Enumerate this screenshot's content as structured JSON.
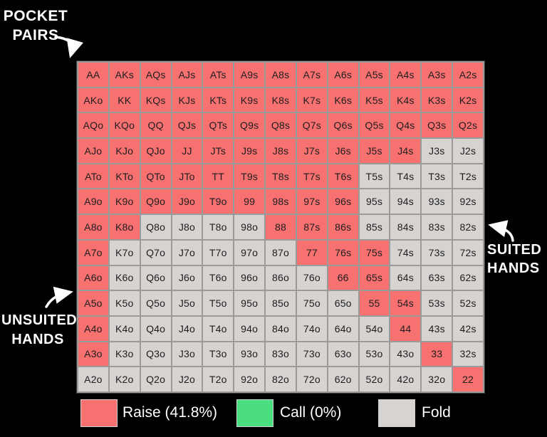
{
  "annotations": {
    "pocket_pairs": {
      "line1": "POCKET",
      "line2": "PAIRS"
    },
    "suited": {
      "line1": "SUITED",
      "line2": "HANDS"
    },
    "unsuited": {
      "line1": "UNSUITED",
      "line2": "HANDS"
    }
  },
  "legend": {
    "items": [
      {
        "action": "raise",
        "label": "Raise (41.8%)",
        "color": "#f87171"
      },
      {
        "action": "call",
        "label": "Call (0%)",
        "color": "#4ade80"
      },
      {
        "action": "fold",
        "label": "Fold",
        "color": "#d6d3d1"
      }
    ]
  },
  "colors": {
    "raise": "#f87171",
    "call": "#4ade80",
    "fold": "#d6d3d1",
    "grid_line": "#9a9a9a",
    "background": "#000000",
    "cell_text": "#1d1d1f",
    "annotation_text": "#ffffff"
  },
  "chart_data": {
    "type": "heatmap",
    "title": "Preflop poker hand range matrix (13x13)",
    "legend_position": "bottom",
    "action_codes": {
      "R": "raise",
      "C": "call",
      "F": "fold"
    },
    "raise_percent": 41.8,
    "call_percent": 0,
    "hands": [
      [
        "AA",
        "AKs",
        "AQs",
        "AJs",
        "ATs",
        "A9s",
        "A8s",
        "A7s",
        "A6s",
        "A5s",
        "A4s",
        "A3s",
        "A2s"
      ],
      [
        "AKo",
        "KK",
        "KQs",
        "KJs",
        "KTs",
        "K9s",
        "K8s",
        "K7s",
        "K6s",
        "K5s",
        "K4s",
        "K3s",
        "K2s"
      ],
      [
        "AQo",
        "KQo",
        "QQ",
        "QJs",
        "QTs",
        "Q9s",
        "Q8s",
        "Q7s",
        "Q6s",
        "Q5s",
        "Q4s",
        "Q3s",
        "Q2s"
      ],
      [
        "AJo",
        "KJo",
        "QJo",
        "JJ",
        "JTs",
        "J9s",
        "J8s",
        "J7s",
        "J6s",
        "J5s",
        "J4s",
        "J3s",
        "J2s"
      ],
      [
        "ATo",
        "KTo",
        "QTo",
        "JTo",
        "TT",
        "T9s",
        "T8s",
        "T7s",
        "T6s",
        "T5s",
        "T4s",
        "T3s",
        "T2s"
      ],
      [
        "A9o",
        "K9o",
        "Q9o",
        "J9o",
        "T9o",
        "99",
        "98s",
        "97s",
        "96s",
        "95s",
        "94s",
        "93s",
        "92s"
      ],
      [
        "A8o",
        "K8o",
        "Q8o",
        "J8o",
        "T8o",
        "98o",
        "88",
        "87s",
        "86s",
        "85s",
        "84s",
        "83s",
        "82s"
      ],
      [
        "A7o",
        "K7o",
        "Q7o",
        "J7o",
        "T7o",
        "97o",
        "87o",
        "77",
        "76s",
        "75s",
        "74s",
        "73s",
        "72s"
      ],
      [
        "A6o",
        "K6o",
        "Q6o",
        "J6o",
        "T6o",
        "96o",
        "86o",
        "76o",
        "66",
        "65s",
        "64s",
        "63s",
        "62s"
      ],
      [
        "A5o",
        "K5o",
        "Q5o",
        "J5o",
        "T5o",
        "95o",
        "85o",
        "75o",
        "65o",
        "55",
        "54s",
        "53s",
        "52s"
      ],
      [
        "A4o",
        "K4o",
        "Q4o",
        "J4o",
        "T4o",
        "94o",
        "84o",
        "74o",
        "64o",
        "54o",
        "44",
        "43s",
        "42s"
      ],
      [
        "A3o",
        "K3o",
        "Q3o",
        "J3o",
        "T3o",
        "93o",
        "83o",
        "73o",
        "63o",
        "53o",
        "43o",
        "33",
        "32s"
      ],
      [
        "A2o",
        "K2o",
        "Q2o",
        "J2o",
        "T2o",
        "92o",
        "82o",
        "72o",
        "62o",
        "52o",
        "42o",
        "32o",
        "22"
      ]
    ],
    "actions": [
      "RRRRRRRRRRRRR",
      "RRRRRRRRRRRRR",
      "RRRRRRRRRRRRR",
      "RRRRRRRRRRRFF",
      "RRRRRRRRRFFFF",
      "RRRRRRRRRFFFF",
      "RRFFFFRRRFFFF",
      "RFFFFFFRRRFFF",
      "RFFFFFFFRRFFF",
      "RFFFFFFFFRRFF",
      "RFFFFFFFFFRFF",
      "RFFFFFFFFFFRF",
      "FFFFFFFFFFFFR"
    ]
  }
}
